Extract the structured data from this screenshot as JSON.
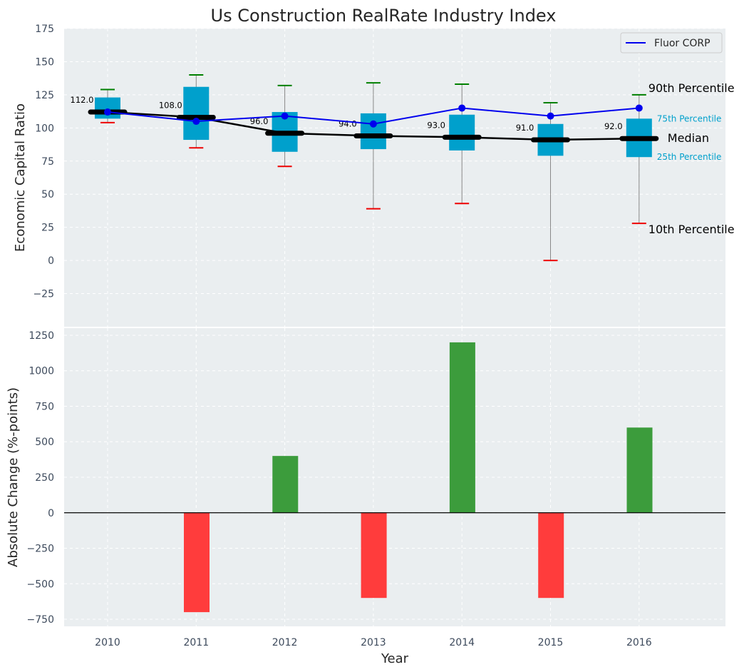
{
  "chart_data": [
    {
      "type": "box",
      "title": "Us Construction RealRate Industry Index",
      "ylabel": "Economic Capital Ratio",
      "ylim": [
        -50,
        175
      ],
      "yticks": [
        -25,
        0,
        25,
        50,
        75,
        100,
        125,
        150,
        175
      ],
      "categories": [
        "2010",
        "2011",
        "2012",
        "2013",
        "2014",
        "2015",
        "2016"
      ],
      "boxes": [
        {
          "year": "2010",
          "p10": 104,
          "p25": 107,
          "median": 112,
          "p75": 123,
          "p90": 129
        },
        {
          "year": "2011",
          "p10": 85,
          "p25": 91,
          "median": 108,
          "p75": 131,
          "p90": 140
        },
        {
          "year": "2012",
          "p10": 71,
          "p25": 82,
          "median": 96,
          "p75": 112,
          "p90": 132
        },
        {
          "year": "2013",
          "p10": 39,
          "p25": 84,
          "median": 94,
          "p75": 111,
          "p90": 134
        },
        {
          "year": "2014",
          "p10": 43,
          "p25": 83,
          "median": 93,
          "p75": 110,
          "p90": 133
        },
        {
          "year": "2015",
          "p10": 0,
          "p25": 79,
          "median": 91,
          "p75": 103,
          "p90": 119
        },
        {
          "year": "2016",
          "p10": 28,
          "p25": 78,
          "median": 92,
          "p75": 107,
          "p90": 125
        }
      ],
      "median_labels": [
        "112.0",
        "108.0",
        "96.0",
        "94.0",
        "93.0",
        "91.0",
        "92.0"
      ],
      "series": [
        {
          "name": "Fluor CORP",
          "color": "#0000ee",
          "values": [
            112,
            105,
            109,
            103,
            115,
            109,
            115
          ]
        }
      ],
      "annotations": {
        "p90": "90th Percentile",
        "p75": "75th Percentile",
        "median": "Median",
        "p25": "25th Percentile",
        "p10": "10th Percentile"
      },
      "legend_position": "top-right",
      "grid": true,
      "colors": {
        "box": "#00a0cc",
        "p90_cap": "#008000",
        "p10_cap": "#ee0000",
        "median": "#000000",
        "whisker": "#888888"
      }
    },
    {
      "type": "bar",
      "ylabel": "Absolute Change (%-points)",
      "xlabel": "Year",
      "ylim": [
        -800,
        1300
      ],
      "yticks": [
        -750,
        -500,
        -250,
        0,
        250,
        500,
        750,
        1000,
        1250
      ],
      "categories": [
        "2010",
        "2011",
        "2012",
        "2013",
        "2014",
        "2015",
        "2016"
      ],
      "values": [
        0,
        -700,
        400,
        -600,
        1200,
        -600,
        600
      ],
      "colors": {
        "positive": "#3c9c3c",
        "negative": "#ff3c3c"
      },
      "grid": true
    }
  ]
}
